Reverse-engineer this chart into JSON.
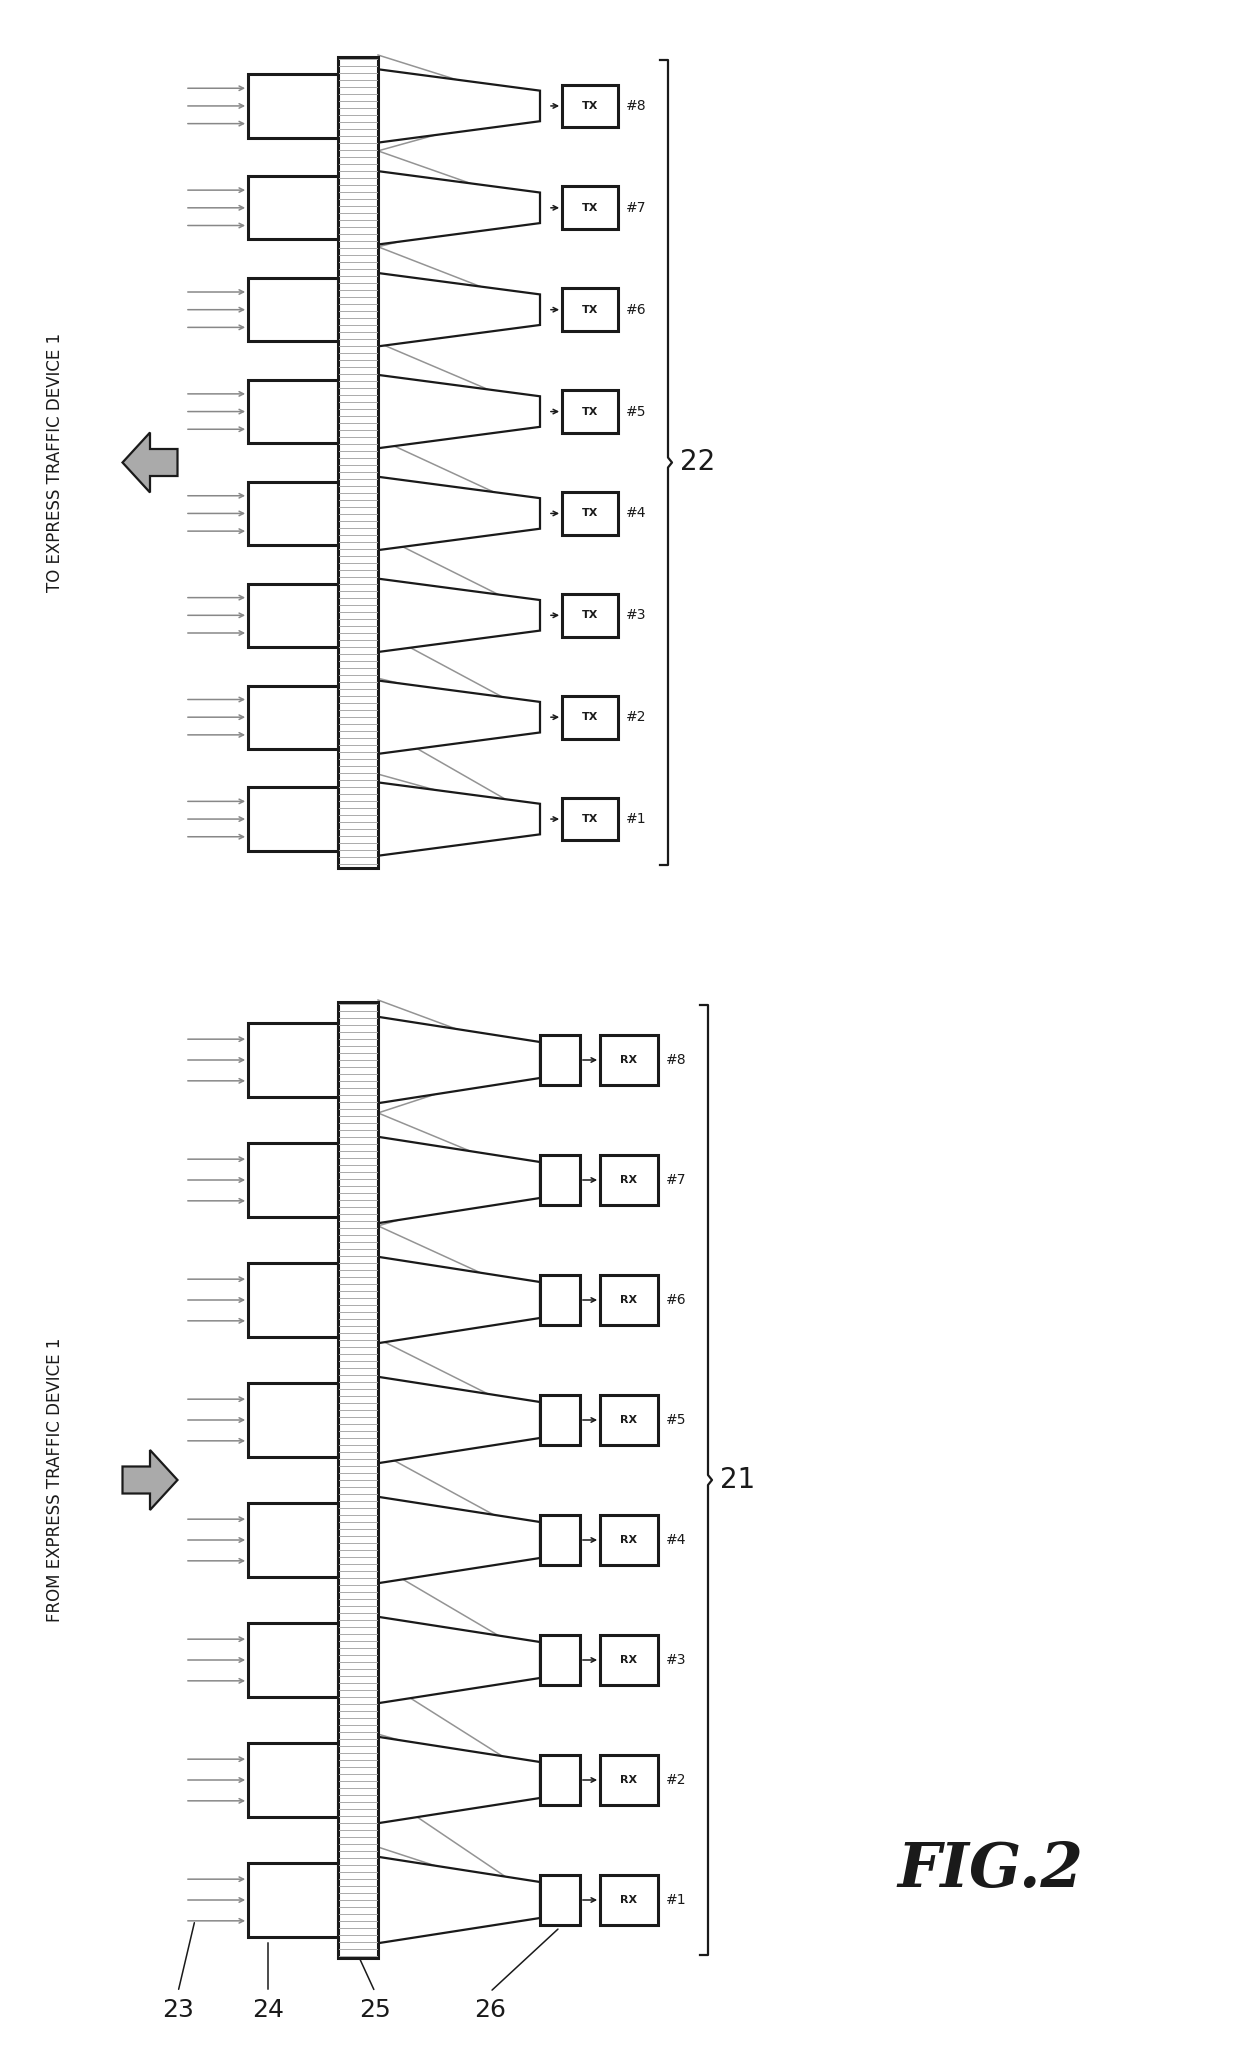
{
  "fig_label": "FIG.2",
  "bg_color": "#ffffff",
  "n_channels": 8,
  "label_21": "21",
  "label_22": "22",
  "label_23": "23",
  "label_24": "24",
  "label_25": "25",
  "label_26": "26",
  "text_top": "TO EXPRESS TRAFFIC DEVICE 1",
  "text_bottom": "FROM EXPRESS TRAFFIC DEVICE 1",
  "rx_label": "RX",
  "tx_label": "TX",
  "dark": "#1a1a1a",
  "gray": "#888888",
  "light_gray": "#aaaaaa"
}
